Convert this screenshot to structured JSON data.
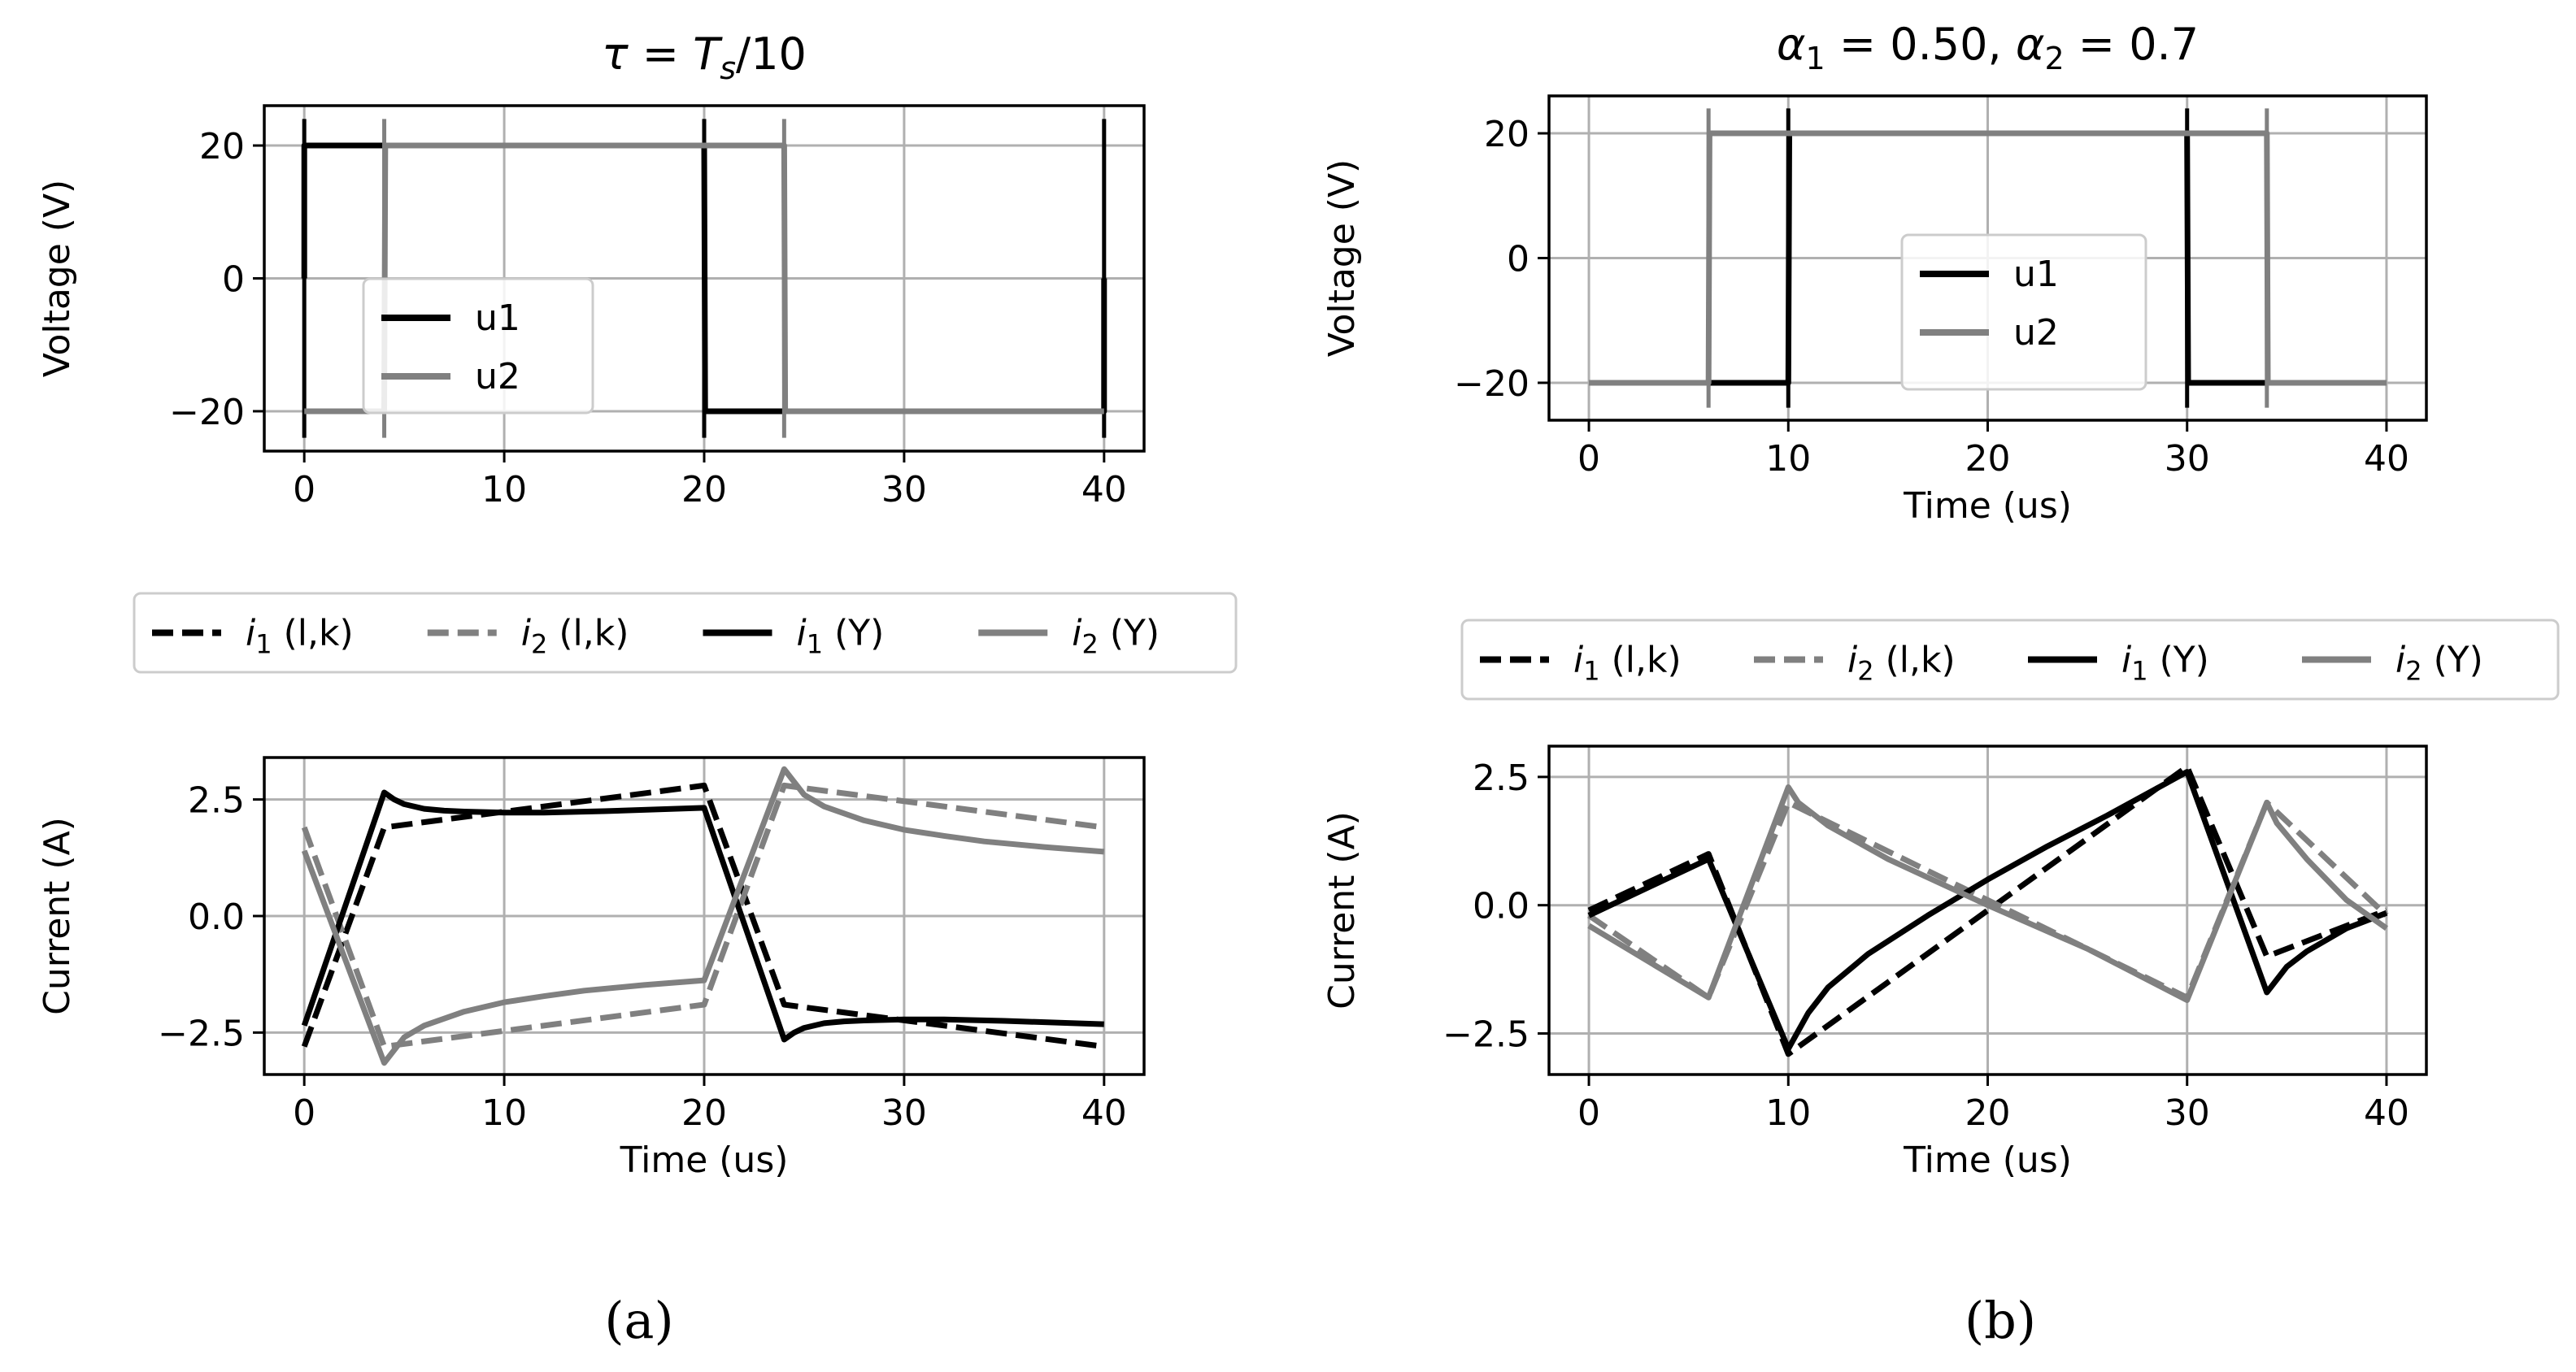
{
  "chart_data": [
    {
      "id": "a_voltage",
      "type": "line",
      "title": "τ = T_s/10",
      "title_parts": [
        "τ",
        " = ",
        "T",
        "s",
        "/10"
      ],
      "xlabel": "",
      "ylabel": "Voltage (V)",
      "xlim": [
        -2,
        42
      ],
      "ylim": [
        -26,
        26
      ],
      "xticks": [
        0,
        10,
        20,
        30,
        40
      ],
      "xtick_labels": [
        "0",
        "10",
        "20",
        "30",
        "40"
      ],
      "yticks": [
        -20,
        0,
        20
      ],
      "ytick_labels": [
        "−20",
        "0",
        "20"
      ],
      "grid": true,
      "legend_position": "center-left",
      "series": [
        {
          "name": "u1",
          "color": "#000000",
          "dash": "solid",
          "x": [
            0,
            0,
            0.05,
            20,
            20.05,
            40,
            40
          ],
          "y": [
            0,
            20,
            20,
            20,
            -20,
            -20,
            0
          ],
          "spikes": [
            0,
            20,
            40
          ]
        },
        {
          "name": "u2",
          "color": "#808080",
          "dash": "solid",
          "x": [
            0,
            4,
            4.05,
            24,
            24.05,
            40
          ],
          "y": [
            -20,
            -20,
            20,
            20,
            -20,
            -20
          ],
          "spikes": [
            4,
            24
          ]
        }
      ]
    },
    {
      "id": "a_current",
      "type": "line",
      "title": "",
      "xlabel": "Time (us)",
      "ylabel": "Current (A)",
      "xlim": [
        -2,
        42
      ],
      "ylim": [
        -3.4,
        3.4
      ],
      "xticks": [
        0,
        10,
        20,
        30,
        40
      ],
      "xtick_labels": [
        "0",
        "10",
        "20",
        "30",
        "40"
      ],
      "yticks": [
        -2.5,
        0,
        2.5
      ],
      "ytick_labels": [
        "−2.5",
        "0.0",
        "2.5"
      ],
      "grid": true,
      "legend_position": "above",
      "series": [
        {
          "name": "i1 (l,k)",
          "name_sym": "i",
          "name_sub": "1",
          "name_rest": " (l,k)",
          "color": "#000000",
          "dash": "dashed",
          "x": [
            0,
            4,
            20,
            24,
            40
          ],
          "y": [
            -2.8,
            1.9,
            2.8,
            -1.9,
            -2.8
          ]
        },
        {
          "name": "i2 (l,k)",
          "name_sym": "i",
          "name_sub": "2",
          "name_rest": " (l,k)",
          "color": "#808080",
          "dash": "dashed",
          "x": [
            0,
            4,
            20,
            24,
            40
          ],
          "y": [
            1.9,
            -2.8,
            -1.9,
            2.8,
            1.9
          ]
        },
        {
          "name": "i1 (Y)",
          "name_sym": "i",
          "name_sub": "1",
          "name_rest": " (Y)",
          "color": "#000000",
          "dash": "solid",
          "x": [
            0,
            4,
            4.5,
            5,
            6,
            7,
            8,
            10,
            12,
            15,
            20,
            24,
            24.5,
            25,
            26,
            27,
            28,
            30,
            32,
            35,
            40
          ],
          "y": [
            -2.35,
            2.65,
            2.5,
            2.4,
            2.3,
            2.26,
            2.24,
            2.22,
            2.22,
            2.25,
            2.32,
            -2.65,
            -2.5,
            -2.4,
            -2.3,
            -2.26,
            -2.24,
            -2.22,
            -2.22,
            -2.25,
            -2.32
          ]
        },
        {
          "name": "i2 (Y)",
          "name_sym": "i",
          "name_sub": "2",
          "name_rest": " (Y)",
          "color": "#808080",
          "dash": "solid",
          "x": [
            0,
            4,
            5,
            6,
            8,
            10,
            12,
            14,
            17,
            20,
            24,
            25,
            26,
            28,
            30,
            32,
            34,
            37,
            40
          ],
          "y": [
            1.4,
            -3.15,
            -2.6,
            -2.35,
            -2.05,
            -1.85,
            -1.72,
            -1.6,
            -1.48,
            -1.38,
            3.15,
            2.6,
            2.35,
            2.05,
            1.85,
            1.72,
            1.6,
            1.48,
            1.38
          ]
        }
      ]
    },
    {
      "id": "b_voltage",
      "type": "line",
      "title": "α1 = 0.50, α2 = 0.7",
      "title_parts": [
        "α",
        "1",
        " = 0.50, ",
        "α",
        "2",
        " = 0.7"
      ],
      "xlabel": "Time (us)",
      "ylabel": "Voltage (V)",
      "xlim": [
        -2,
        42
      ],
      "ylim": [
        -26,
        26
      ],
      "xticks": [
        0,
        10,
        20,
        30,
        40
      ],
      "xtick_labels": [
        "0",
        "10",
        "20",
        "30",
        "40"
      ],
      "yticks": [
        -20,
        0,
        20
      ],
      "ytick_labels": [
        "−20",
        "0",
        "20"
      ],
      "grid": true,
      "legend_position": "center",
      "series": [
        {
          "name": "u1",
          "color": "#000000",
          "dash": "solid",
          "x": [
            0,
            10,
            10.05,
            30,
            30.05,
            40
          ],
          "y": [
            -20,
            -20,
            20,
            20,
            -20,
            -20
          ],
          "spikes": [
            10,
            30
          ]
        },
        {
          "name": "u2",
          "color": "#808080",
          "dash": "solid",
          "x": [
            0,
            6,
            6.05,
            34,
            34.05,
            40
          ],
          "y": [
            -20,
            -20,
            20,
            20,
            -20,
            -20
          ],
          "spikes": [
            6,
            34
          ]
        }
      ]
    },
    {
      "id": "b_current",
      "type": "line",
      "title": "",
      "xlabel": "Time (us)",
      "ylabel": "Current (A)",
      "xlim": [
        -2,
        42
      ],
      "ylim": [
        -3.3,
        3.1
      ],
      "xticks": [
        0,
        10,
        20,
        30,
        40
      ],
      "xtick_labels": [
        "0",
        "10",
        "20",
        "30",
        "40"
      ],
      "yticks": [
        -2.5,
        0,
        2.5
      ],
      "ytick_labels": [
        "−2.5",
        "0.0",
        "2.5"
      ],
      "grid": true,
      "legend_position": "above",
      "series": [
        {
          "name": "i1 (l,k)",
          "name_sym": "i",
          "name_sub": "1",
          "name_rest": " (l,k)",
          "color": "#000000",
          "dash": "dashed",
          "x": [
            0,
            6,
            10,
            30,
            34,
            40
          ],
          "y": [
            -0.1,
            1.0,
            -2.9,
            2.7,
            -1.0,
            -0.1
          ]
        },
        {
          "name": "i2 (l,k)",
          "name_sym": "i",
          "name_sub": "2",
          "name_rest": " (l,k)",
          "color": "#808080",
          "dash": "dashed",
          "x": [
            0,
            6,
            10,
            30,
            34,
            40
          ],
          "y": [
            -0.2,
            -1.8,
            2.0,
            -1.8,
            2.0,
            -0.2
          ]
        },
        {
          "name": "i1 (Y)",
          "name_sym": "i",
          "name_sub": "1",
          "name_rest": " (Y)",
          "color": "#000000",
          "dash": "solid",
          "x": [
            0,
            6,
            10,
            11,
            12,
            14,
            17,
            20,
            23,
            26,
            30,
            34,
            35,
            36,
            38,
            40
          ],
          "y": [
            -0.2,
            0.9,
            -2.8,
            -2.1,
            -1.6,
            -0.95,
            -0.2,
            0.5,
            1.15,
            1.75,
            2.6,
            -1.7,
            -1.2,
            -0.9,
            -0.45,
            -0.15
          ]
        },
        {
          "name": "i2 (Y)",
          "name_sym": "i",
          "name_sub": "2",
          "name_rest": " (Y)",
          "color": "#808080",
          "dash": "solid",
          "x": [
            0,
            6,
            10,
            10.5,
            12,
            15,
            20,
            25,
            30,
            34,
            34.5,
            36,
            38,
            40
          ],
          "y": [
            -0.4,
            -1.8,
            2.3,
            2.0,
            1.55,
            0.9,
            0.0,
            -0.85,
            -1.85,
            2.0,
            1.6,
            0.9,
            0.1,
            -0.45
          ]
        }
      ]
    }
  ],
  "captions": {
    "a": "(a)",
    "b": "(b)"
  }
}
